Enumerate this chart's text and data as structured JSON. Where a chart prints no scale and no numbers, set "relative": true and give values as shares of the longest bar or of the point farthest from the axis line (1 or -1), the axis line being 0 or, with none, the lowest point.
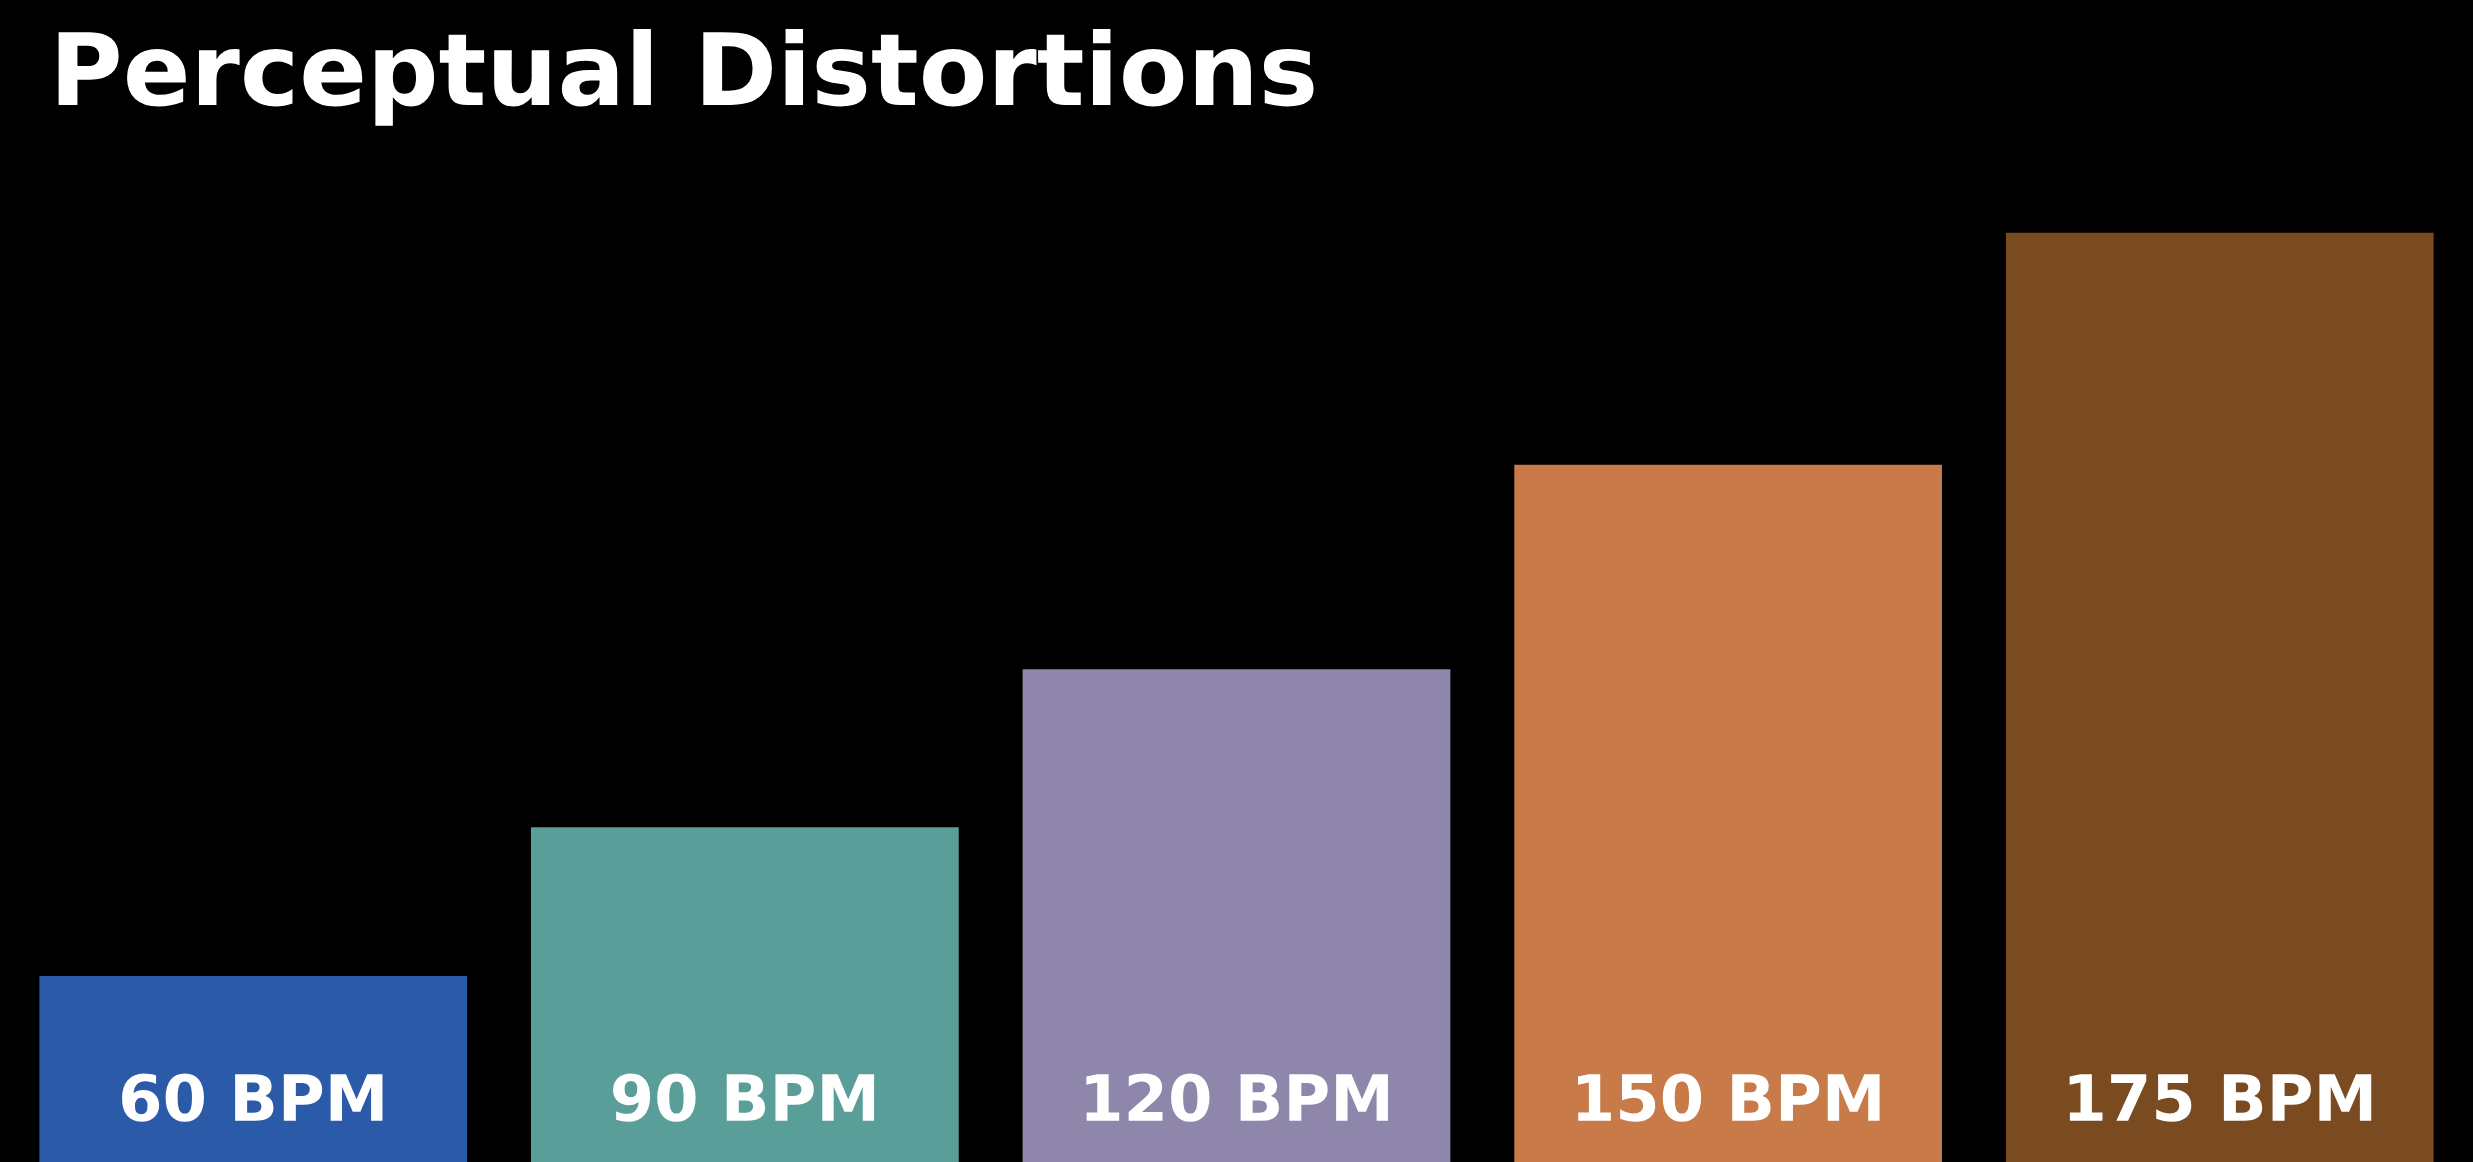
{
  "chart_data": {
    "type": "bar",
    "title": "Perceptual Distortions",
    "relative": true,
    "categories": [
      "60 BPM",
      "90 BPM",
      "120 BPM",
      "150 BPM",
      "175 BPM"
    ],
    "values": [
      0.2,
      0.36,
      0.53,
      0.75,
      1
    ],
    "colors": [
      "#2a5aa8",
      "#5a9e9a",
      "#8f86ac",
      "#c87a48",
      "#7a4a20"
    ],
    "legend": false
  }
}
